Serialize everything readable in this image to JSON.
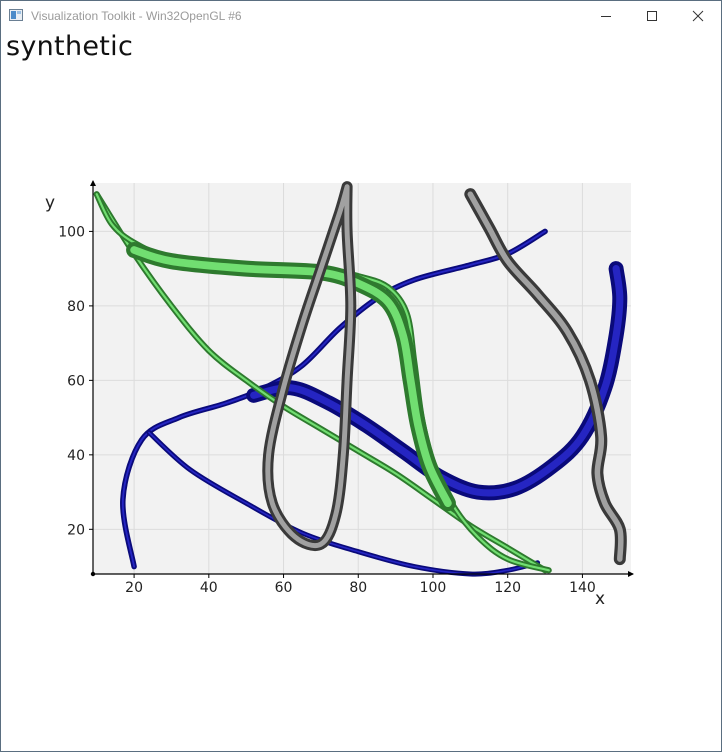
{
  "window": {
    "title": "Visualization Toolkit - Win32OpenGL #6",
    "buttons": [
      "minimize-icon",
      "maximize-icon",
      "close-icon"
    ]
  },
  "chart_data": {
    "type": "line",
    "title": "synthetic",
    "xlabel": "x",
    "ylabel": "y",
    "xlim": [
      9,
      153
    ],
    "ylim": [
      8,
      113
    ],
    "grid": true,
    "plot_background": "#f2f2f2",
    "xticks": [
      20,
      40,
      60,
      80,
      100,
      120,
      140
    ],
    "yticks": [
      20,
      40,
      60,
      80,
      100
    ],
    "tube_series": [
      {
        "color": "#0a0a7a",
        "highlight": "#2a2acf",
        "width": 3.5,
        "points": [
          [
            20,
            10
          ],
          [
            17,
            28
          ],
          [
            22,
            44
          ],
          [
            32,
            50
          ],
          [
            45,
            54
          ],
          [
            55,
            58
          ],
          [
            65,
            64
          ],
          [
            75,
            74
          ],
          [
            85,
            82
          ],
          [
            95,
            87
          ],
          [
            110,
            91
          ],
          [
            120,
            94
          ],
          [
            130,
            100
          ]
        ]
      },
      {
        "color": "#0a0a7a",
        "highlight": "#2a2acf",
        "width": 3,
        "points": [
          [
            24,
            46
          ],
          [
            35,
            36
          ],
          [
            50,
            27
          ],
          [
            65,
            19
          ],
          [
            80,
            14
          ],
          [
            95,
            10
          ],
          [
            110,
            8
          ],
          [
            120,
            9
          ],
          [
            128,
            11
          ]
        ]
      },
      {
        "color": "#0a0a7a",
        "highlight": "#2a2acf",
        "width": 13,
        "points": [
          [
            52,
            56
          ],
          [
            62,
            58
          ],
          [
            72,
            54
          ],
          [
            82,
            48
          ],
          [
            92,
            41
          ],
          [
            102,
            34
          ],
          [
            112,
            30
          ],
          [
            122,
            31
          ],
          [
            132,
            37
          ],
          [
            140,
            45
          ],
          [
            146,
            58
          ],
          [
            149,
            72
          ],
          [
            150,
            82
          ],
          [
            149,
            90
          ]
        ]
      },
      {
        "color": "#2e7a2e",
        "highlight": "#7cf07c",
        "width": 4,
        "points": [
          [
            10,
            110
          ],
          [
            20,
            94
          ],
          [
            30,
            80
          ],
          [
            40,
            68
          ],
          [
            50,
            60
          ],
          [
            60,
            53
          ],
          [
            70,
            47
          ],
          [
            80,
            41
          ],
          [
            90,
            35
          ],
          [
            100,
            28
          ],
          [
            110,
            21
          ],
          [
            120,
            15
          ],
          [
            130,
            9
          ]
        ]
      },
      {
        "color": "#2e7a2e",
        "highlight": "#7cf07c",
        "width": 4,
        "points": [
          [
            10,
            110
          ],
          [
            14,
            102
          ],
          [
            20,
            97
          ],
          [
            30,
            93
          ],
          [
            50,
            91
          ],
          [
            70,
            90
          ],
          [
            80,
            88
          ],
          [
            88,
            85
          ],
          [
            93,
            78
          ],
          [
            95,
            65
          ],
          [
            97,
            50
          ],
          [
            100,
            38
          ],
          [
            105,
            27
          ],
          [
            112,
            18
          ],
          [
            120,
            12
          ],
          [
            131,
            9
          ]
        ]
      },
      {
        "color": "#2e7a2e",
        "highlight": "#7cf07c",
        "width": 14,
        "points": [
          [
            20,
            95
          ],
          [
            30,
            92
          ],
          [
            50,
            90
          ],
          [
            70,
            89
          ],
          [
            80,
            86
          ],
          [
            88,
            81
          ],
          [
            92,
            72
          ],
          [
            94,
            60
          ],
          [
            96,
            48
          ],
          [
            99,
            37
          ],
          [
            104,
            27
          ]
        ]
      },
      {
        "color": "#3a3a3a",
        "highlight": "#b4b4b4",
        "width": 10,
        "points": [
          [
            110,
            110
          ],
          [
            115,
            101
          ],
          [
            120,
            92
          ],
          [
            128,
            83
          ],
          [
            136,
            73
          ],
          [
            142,
            60
          ],
          [
            145,
            45
          ],
          [
            144,
            35
          ],
          [
            146,
            27
          ],
          [
            150,
            20
          ],
          [
            150,
            12
          ]
        ]
      },
      {
        "color": "#3a3a3a",
        "highlight": "#b4b4b4",
        "width": 9,
        "points": [
          [
            77,
            112
          ],
          [
            75,
            105
          ],
          [
            70,
            90
          ],
          [
            65,
            75
          ],
          [
            60,
            58
          ],
          [
            56,
            40
          ],
          [
            57,
            27
          ],
          [
            63,
            18
          ],
          [
            70,
            16
          ],
          [
            74,
            24
          ],
          [
            76,
            40
          ],
          [
            77,
            60
          ],
          [
            78,
            80
          ],
          [
            77,
            100
          ],
          [
            77,
            112
          ]
        ]
      }
    ]
  }
}
